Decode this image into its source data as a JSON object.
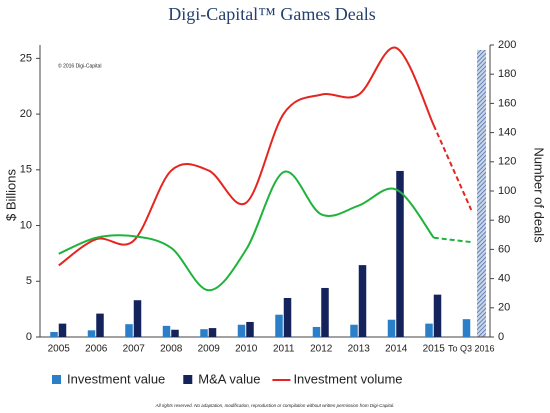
{
  "chart_data": {
    "type": "bar_line",
    "title": "Digi-Capital™ Games Deals",
    "copyright": "© 2016 Digi-Capital",
    "footer": "All rights reserved. No adaptation, modification, reproduction or compilation without written permission from Digi-Capital.",
    "y_label": "$ Billions",
    "y2_label": "Number of deals",
    "categories": [
      "2005",
      "2006",
      "2007",
      "2008",
      "2009",
      "2010",
      "2011",
      "2012",
      "2013",
      "2014",
      "2015",
      "To Q3 2016"
    ],
    "ylim": [
      0,
      26.2
    ],
    "yticks": [
      0,
      5,
      10,
      15,
      20,
      25
    ],
    "y2lim": [
      0,
      200
    ],
    "y2ticks": [
      0,
      20,
      40,
      60,
      80,
      100,
      120,
      140,
      160,
      180,
      200
    ],
    "grid": false,
    "dashed_last_segment": true,
    "series": [
      {
        "name": "Investment value",
        "type": "bar",
        "color": "#2a7fc8",
        "values": [
          0.45,
          0.6,
          1.15,
          1.0,
          0.7,
          1.1,
          2.0,
          0.9,
          1.1,
          1.55,
          1.2,
          1.6
        ]
      },
      {
        "name": "M&A value",
        "type": "bar",
        "color": "#15235c",
        "values": [
          1.2,
          2.1,
          3.3,
          0.65,
          0.8,
          1.35,
          3.5,
          4.4,
          6.45,
          14.9,
          3.8,
          null
        ]
      },
      {
        "name": "Investment volume",
        "type": "line",
        "axis": "y2",
        "color": "#e42520",
        "values": [
          49,
          67,
          66,
          114,
          114,
          92,
          153,
          166,
          166,
          198,
          145,
          87
        ]
      },
      {
        "type": "line",
        "axis": "y2",
        "color": "#1fb33c",
        "values": [
          57,
          68,
          69,
          61,
          32,
          60,
          113,
          84,
          90,
          101,
          68,
          65
        ]
      }
    ]
  }
}
